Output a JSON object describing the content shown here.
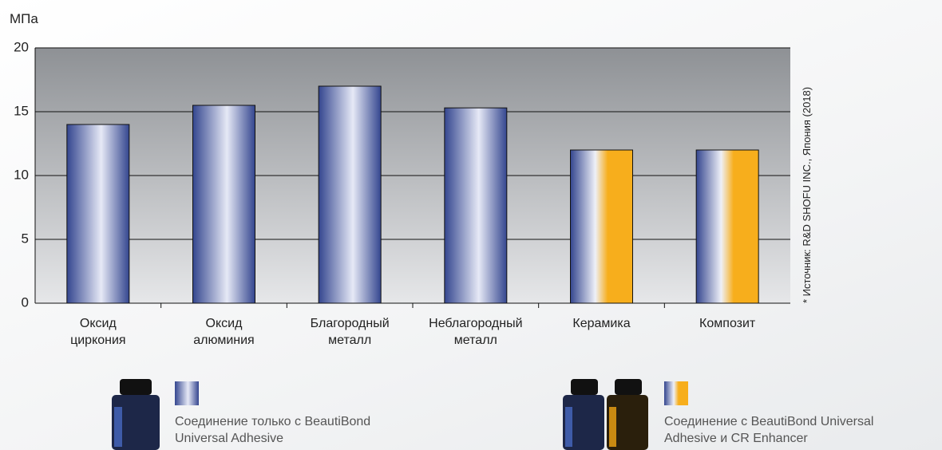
{
  "chart_data": {
    "type": "bar",
    "y_label": "МПа",
    "note": "* Источник: R&D SHOFU INC., Япония (2018)",
    "categories": [
      "Оксид циркония",
      "Оксид алюминия",
      "Благородный металл",
      "Неблагородный металл",
      "Керамика",
      "Композит"
    ],
    "series": [
      {
        "name": "Соединение только с BeautiBond Universal Adhesive",
        "color": "#34468f",
        "values": [
          14,
          15.5,
          17,
          15.3,
          null,
          null
        ]
      },
      {
        "name": "Соединение с BeautiBond Universal Adhesive и CR Enhancer",
        "color": "#f7ae1c",
        "values": [
          null,
          null,
          null,
          null,
          12,
          12
        ]
      }
    ],
    "ylim": [
      0,
      20
    ],
    "yticks": [
      0,
      5,
      10,
      15,
      20
    ],
    "grid": true
  }
}
